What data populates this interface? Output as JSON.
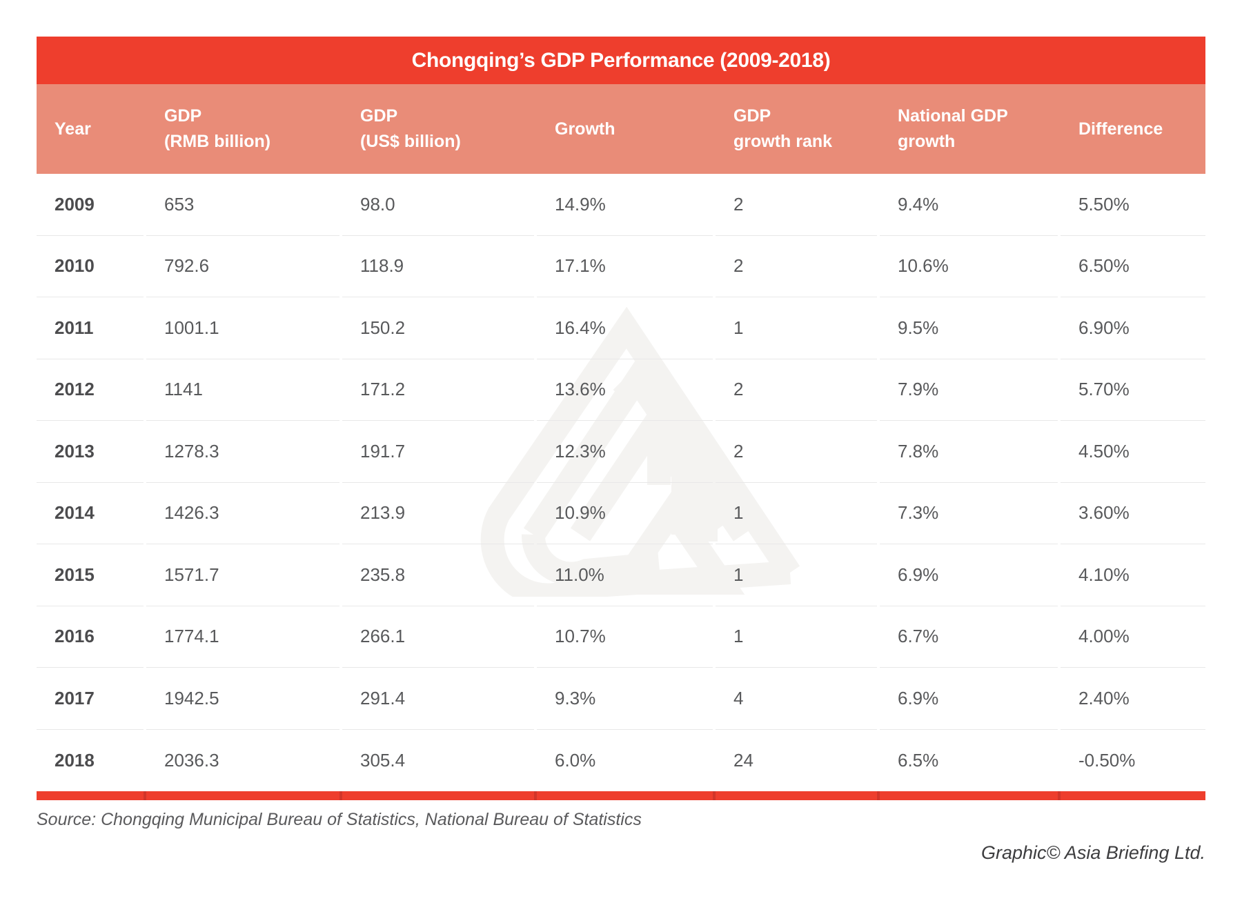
{
  "chart_data": {
    "type": "table",
    "title": "Chongqing’s GDP Performance (2009-2018)",
    "columns": [
      {
        "key": "year",
        "label": "Year"
      },
      {
        "key": "gdp_rmb",
        "label": "GDP\n(RMB billion)"
      },
      {
        "key": "gdp_usd",
        "label": "GDP\n(US$ billion)"
      },
      {
        "key": "growth",
        "label": "Growth"
      },
      {
        "key": "rank",
        "label": "GDP\ngrowth rank"
      },
      {
        "key": "national",
        "label": "National GDP\ngrowth"
      },
      {
        "key": "difference",
        "label": "Difference"
      }
    ],
    "rows": [
      {
        "year": "2009",
        "gdp_rmb": "653",
        "gdp_usd": "98.0",
        "growth": "14.9%",
        "rank": "2",
        "national": "9.4%",
        "difference": "5.50%"
      },
      {
        "year": "2010",
        "gdp_rmb": "792.6",
        "gdp_usd": "118.9",
        "growth": "17.1%",
        "rank": "2",
        "national": "10.6%",
        "difference": "6.50%"
      },
      {
        "year": "2011",
        "gdp_rmb": "1001.1",
        "gdp_usd": "150.2",
        "growth": "16.4%",
        "rank": "1",
        "national": "9.5%",
        "difference": "6.90%"
      },
      {
        "year": "2012",
        "gdp_rmb": "1141",
        "gdp_usd": "171.2",
        "growth": "13.6%",
        "rank": "2",
        "national": "7.9%",
        "difference": "5.70%"
      },
      {
        "year": "2013",
        "gdp_rmb": "1278.3",
        "gdp_usd": "191.7",
        "growth": "12.3%",
        "rank": "2",
        "national": "7.8%",
        "difference": "4.50%"
      },
      {
        "year": "2014",
        "gdp_rmb": "1426.3",
        "gdp_usd": "213.9",
        "growth": "10.9%",
        "rank": "1",
        "national": "7.3%",
        "difference": "3.60%"
      },
      {
        "year": "2015",
        "gdp_rmb": "1571.7",
        "gdp_usd": "235.8",
        "growth": "11.0%",
        "rank": "1",
        "national": "6.9%",
        "difference": "4.10%"
      },
      {
        "year": "2016",
        "gdp_rmb": "1774.1",
        "gdp_usd": "266.1",
        "growth": "10.7%",
        "rank": "1",
        "national": "6.7%",
        "difference": "4.00%"
      },
      {
        "year": "2017",
        "gdp_rmb": "1942.5",
        "gdp_usd": "291.4",
        "growth": "9.3%",
        "rank": "4",
        "national": "6.9%",
        "difference": "2.40%"
      },
      {
        "year": "2018",
        "gdp_rmb": "2036.3",
        "gdp_usd": "305.4",
        "growth": "6.0%",
        "rank": "24",
        "national": "6.5%",
        "difference": "-0.50%"
      }
    ],
    "layout_hints": {
      "grid": "horizontal row dividers only",
      "legend": "none"
    }
  },
  "footer": {
    "source": "Source: Chongqing Municipal Bureau of Statistics, National Bureau of Statistics",
    "credit": "Graphic© Asia Briefing Ltd."
  },
  "colors": {
    "title_bar": "#ee3e2d",
    "header_bg": "#e98c78",
    "header_text": "#ffffff",
    "bottom_bar": "#ee3e2d",
    "bottom_bar_notch": "#d23529",
    "row_divider": "#e8e8e8",
    "year_text": "#4c4c4e",
    "cell_text": "#58595b",
    "watermark": "#f4f3f1"
  },
  "icons": {
    "watermark": "asia-briefing-logo-watermark"
  }
}
